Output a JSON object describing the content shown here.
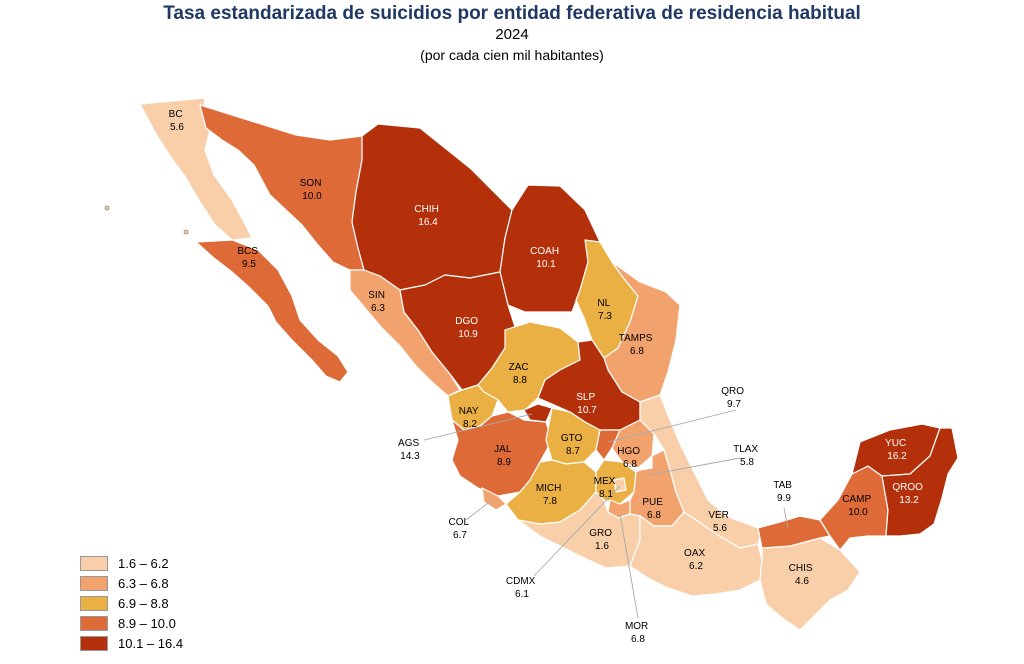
{
  "title": "Tasa estandarizada de suicidios por entidad federativa de residencia habitual",
  "year": "2024",
  "subtitle": "(por cada cien mil habitantes)",
  "legend": [
    {
      "label": "1.6 – 6.2",
      "color": "#f9cfaa"
    },
    {
      "label": "6.3 – 6.8",
      "color": "#f2a36d"
    },
    {
      "label": "6.9 – 8.8",
      "color": "#ebb043"
    },
    {
      "label": "8.9 – 10.0",
      "color": "#de6a38"
    },
    {
      "label": "10.1 – 16.4",
      "color": "#b3300b"
    }
  ],
  "states": [
    {
      "abbr": "BC",
      "value": "5.6"
    },
    {
      "abbr": "SON",
      "value": "10.0"
    },
    {
      "abbr": "CHIH",
      "value": "16.4"
    },
    {
      "abbr": "COAH",
      "value": "10.1"
    },
    {
      "abbr": "BCS",
      "value": "9.5"
    },
    {
      "abbr": "SIN",
      "value": "6.3"
    },
    {
      "abbr": "DGO",
      "value": "10.9"
    },
    {
      "abbr": "NL",
      "value": "7.3"
    },
    {
      "abbr": "TAMPS",
      "value": "6.8"
    },
    {
      "abbr": "ZAC",
      "value": "8.8"
    },
    {
      "abbr": "SLP",
      "value": "10.7"
    },
    {
      "abbr": "NAY",
      "value": "8.2"
    },
    {
      "abbr": "JAL",
      "value": "8.9"
    },
    {
      "abbr": "GTO",
      "value": "8.7"
    },
    {
      "abbr": "HGO",
      "value": "6.8"
    },
    {
      "abbr": "MICH",
      "value": "7.8"
    },
    {
      "abbr": "MEX",
      "value": "8.1"
    },
    {
      "abbr": "PUE",
      "value": "6.8"
    },
    {
      "abbr": "GRO",
      "value": "1.6"
    },
    {
      "abbr": "VER",
      "value": "5.6"
    },
    {
      "abbr": "OAX",
      "value": "6.2"
    },
    {
      "abbr": "CHIS",
      "value": "4.6"
    },
    {
      "abbr": "CAMP",
      "value": "10.0"
    },
    {
      "abbr": "YUC",
      "value": "16.2"
    },
    {
      "abbr": "QROO",
      "value": "13.2"
    },
    {
      "abbr": "QRO",
      "value": "9.7"
    },
    {
      "abbr": "TLAX",
      "value": "5.8"
    },
    {
      "abbr": "TAB",
      "value": "9.9"
    },
    {
      "abbr": "AGS",
      "value": "14.3"
    },
    {
      "abbr": "COL",
      "value": "6.7"
    },
    {
      "abbr": "CDMX",
      "value": "6.1"
    },
    {
      "abbr": "MOR",
      "value": "6.8"
    }
  ]
}
